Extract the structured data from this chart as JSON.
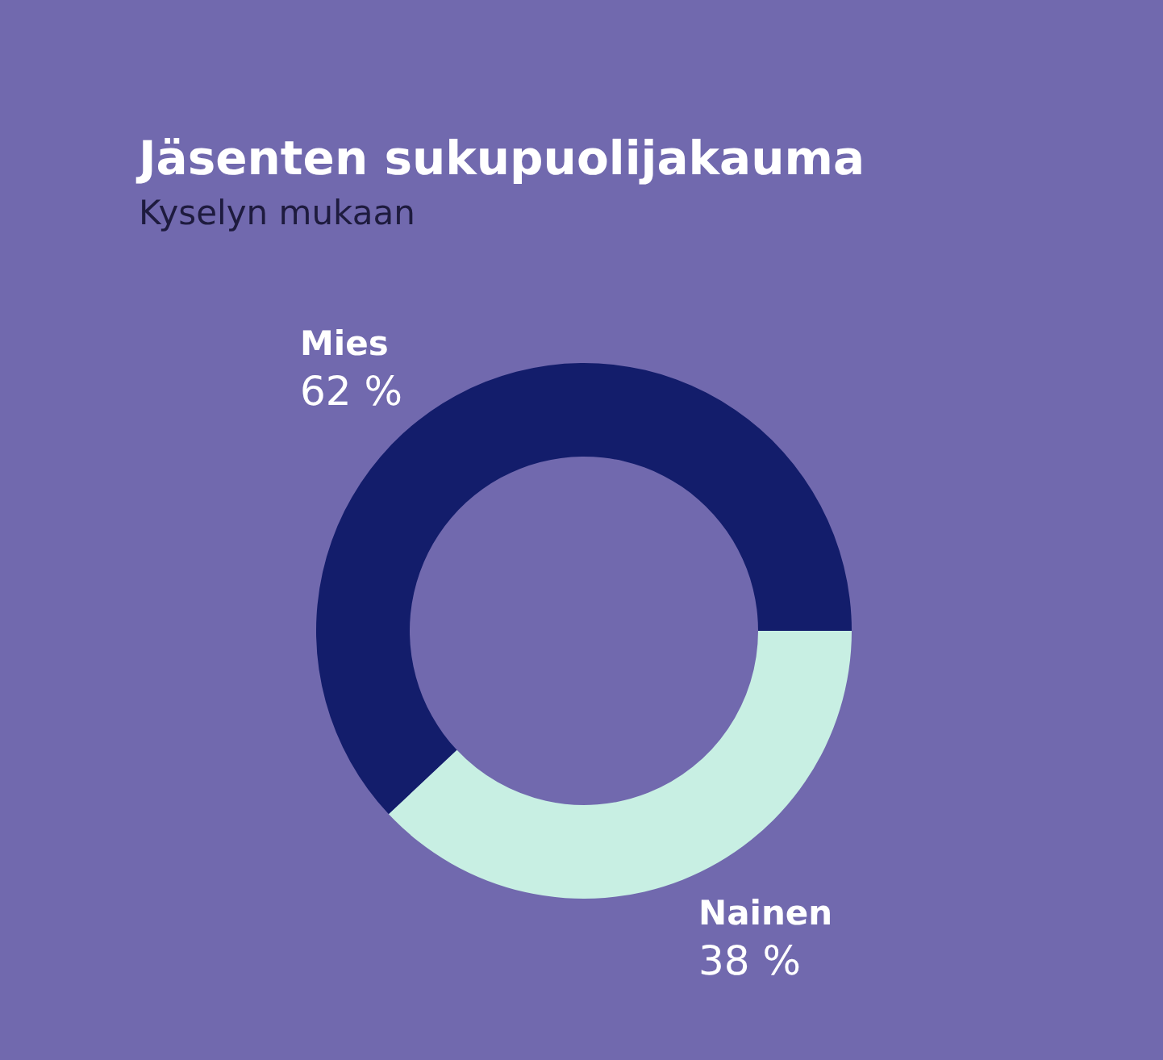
{
  "chart_data": {
    "type": "donut",
    "title": "Jäsenten sukupuolijakauma",
    "subtitle": "Kyselyn mukaan",
    "categories": [
      "Mies",
      "Nainen"
    ],
    "values": [
      62,
      38
    ],
    "colors": [
      "#131d6b",
      "#c8efe3"
    ],
    "value_labels": [
      "62 %",
      "38 %"
    ]
  }
}
